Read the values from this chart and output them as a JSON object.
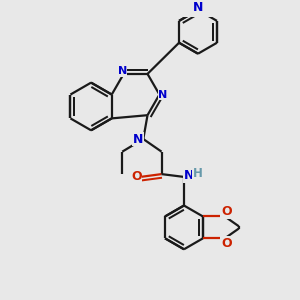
{
  "bg_color": "#e8e8e8",
  "bond_color": "#1a1a1a",
  "nitrogen_color": "#0000cc",
  "oxygen_color": "#cc2200",
  "nh_color": "#6699aa",
  "bond_width": 1.6,
  "figsize": [
    3.0,
    3.0
  ],
  "dpi": 100,
  "xlim": [
    0,
    10
  ],
  "ylim": [
    0,
    10
  ]
}
